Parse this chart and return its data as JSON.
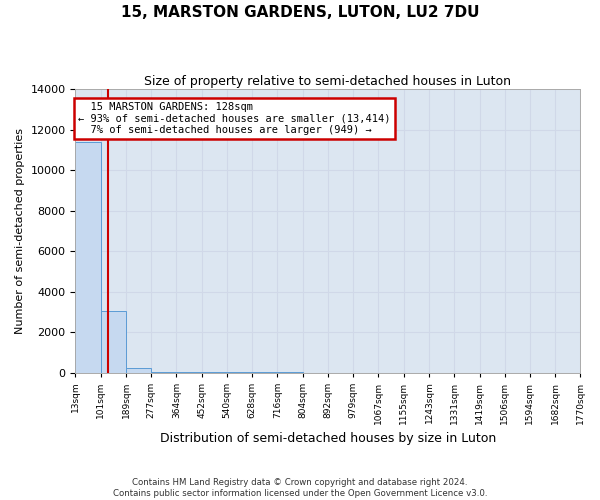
{
  "title": "15, MARSTON GARDENS, LUTON, LU2 7DU",
  "subtitle": "Size of property relative to semi-detached houses in Luton",
  "xlabel": "Distribution of semi-detached houses by size in Luton",
  "ylabel": "Number of semi-detached properties",
  "footer_line1": "Contains HM Land Registry data © Crown copyright and database right 2024.",
  "footer_line2": "Contains public sector information licensed under the Open Government Licence v3.0.",
  "property_size": 128,
  "property_label": "15 MARSTON GARDENS: 128sqm",
  "pct_smaller": 93,
  "count_smaller": 13414,
  "pct_larger": 7,
  "count_larger": 949,
  "bin_edges": [
    13,
    101,
    189,
    277,
    364,
    452,
    540,
    628,
    716,
    804,
    892,
    979,
    1067,
    1155,
    1243,
    1331,
    1419,
    1506,
    1594,
    1682,
    1770
  ],
  "bin_labels": [
    "13sqm",
    "101sqm",
    "189sqm",
    "277sqm",
    "364sqm",
    "452sqm",
    "540sqm",
    "628sqm",
    "716sqm",
    "804sqm",
    "892sqm",
    "979sqm",
    "1067sqm",
    "1155sqm",
    "1243sqm",
    "1331sqm",
    "1419sqm",
    "1506sqm",
    "1594sqm",
    "1682sqm",
    "1770sqm"
  ],
  "bar_heights": [
    11400,
    3050,
    225,
    40,
    12,
    5,
    2,
    1,
    1,
    0,
    0,
    0,
    0,
    0,
    0,
    0,
    0,
    0,
    0,
    0
  ],
  "bar_color": "#c6d9f0",
  "bar_edge_color": "#5b9bd5",
  "grid_color": "#d0d8e8",
  "bg_color": "#dce6f1",
  "red_line_color": "#cc0000",
  "annotation_box_color": "#cc0000",
  "ylim": [
    0,
    14000
  ],
  "yticks": [
    0,
    2000,
    4000,
    6000,
    8000,
    10000,
    12000,
    14000
  ]
}
